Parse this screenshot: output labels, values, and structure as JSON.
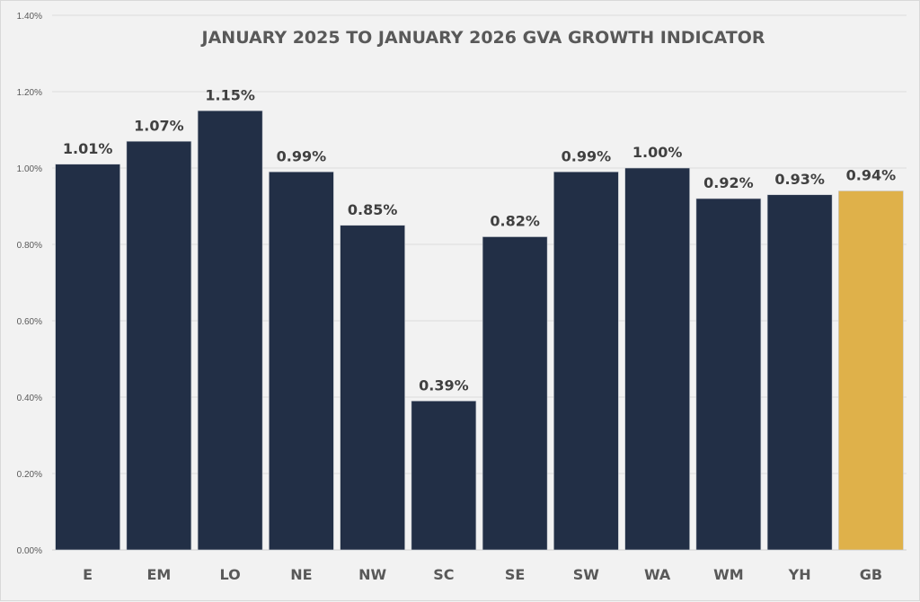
{
  "chart_data": {
    "type": "bar",
    "title": "JANUARY 2025 TO JANUARY 2026 GVA GROWTH INDICATOR",
    "xlabel": "",
    "ylabel": "",
    "categories": [
      "E",
      "EM",
      "LO",
      "NE",
      "NW",
      "SC",
      "SE",
      "SW",
      "WA",
      "WM",
      "YH",
      "GB"
    ],
    "values": [
      1.01,
      1.07,
      1.15,
      0.99,
      0.85,
      0.39,
      0.82,
      0.99,
      1.0,
      0.92,
      0.93,
      0.94
    ],
    "data_labels": [
      "1.01%",
      "1.07%",
      "1.15%",
      "0.99%",
      "0.85%",
      "0.39%",
      "0.82%",
      "0.99%",
      "1.00%",
      "0.92%",
      "0.93%",
      "0.94%"
    ],
    "ylim": [
      0,
      1.4
    ],
    "yticks": [
      0,
      0.2,
      0.4,
      0.6,
      0.8,
      1.0,
      1.2,
      1.4
    ],
    "ytick_labels": [
      "0.00%",
      "0.20%",
      "0.40%",
      "0.60%",
      "0.80%",
      "1.00%",
      "1.20%",
      "1.40%"
    ],
    "grid": true,
    "legend": "none",
    "colors": {
      "default": "#222f46",
      "highlight": "#dfb14a",
      "highlight_category": "GB"
    }
  }
}
